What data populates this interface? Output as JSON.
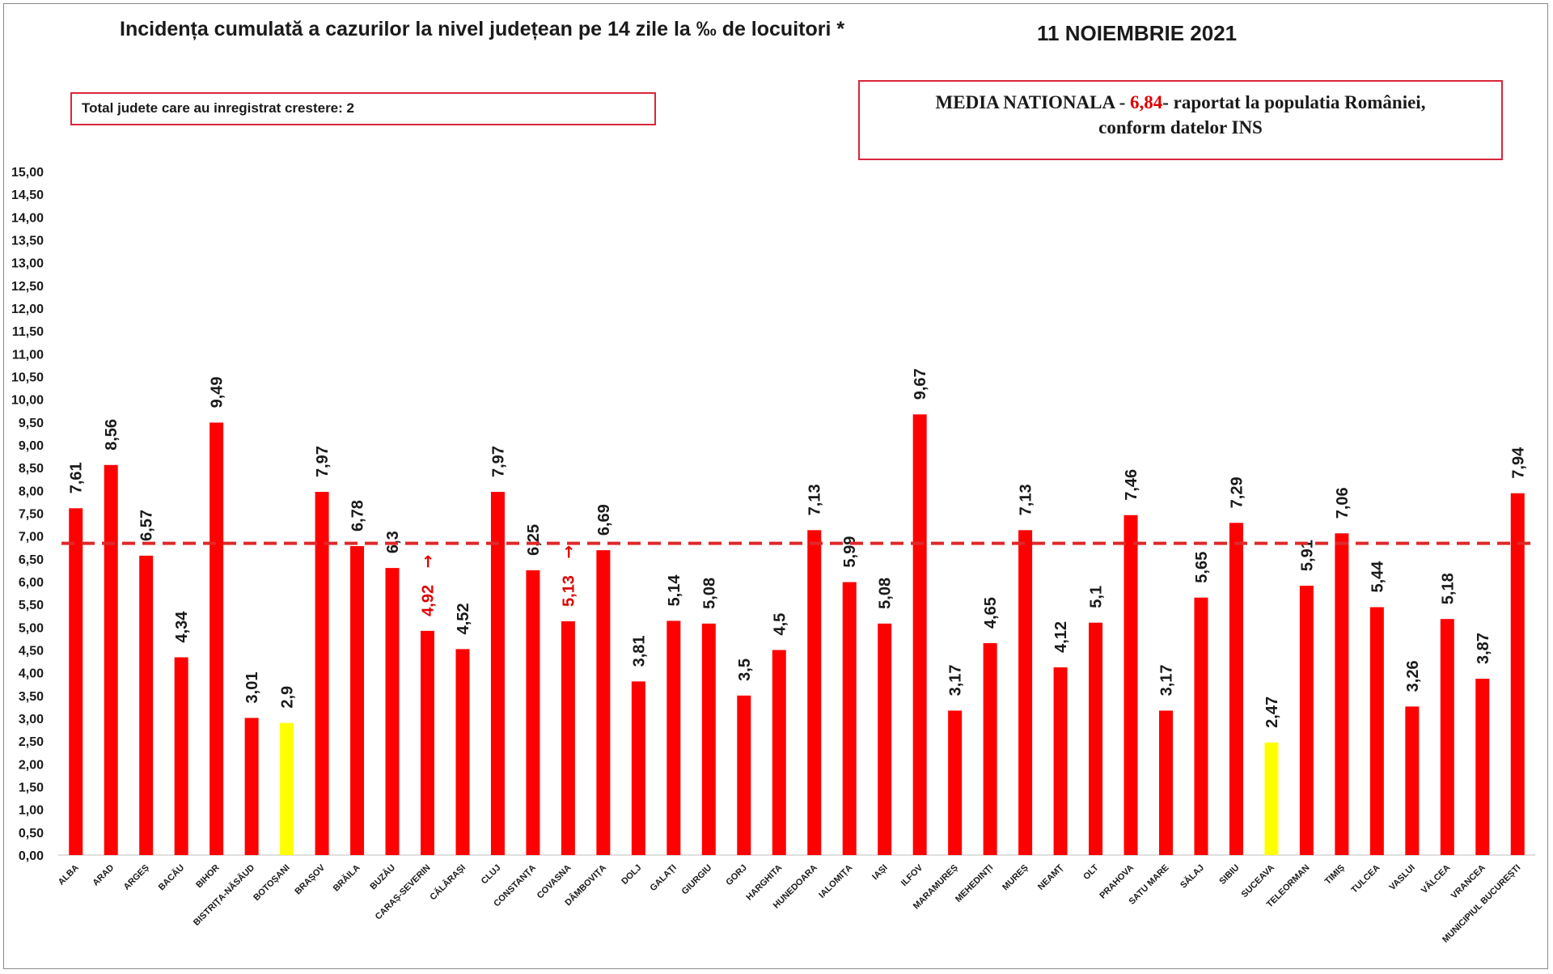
{
  "header": {
    "title": "Incidența cumulată a cazurilor la nivel județean pe 14 zile la ‰ de locuitori *",
    "date": "11 NOIEMBRIE 2021"
  },
  "info_box": {
    "text": "Total judete care au inregistrat crestere: 2"
  },
  "national_box": {
    "prefix": "MEDIA NATIONALA - ",
    "value_text": "6,84",
    "suffix": "-  raportat la populatia României,",
    "line2": "conform datelor INS"
  },
  "colors": {
    "bar": "#ff0000",
    "highlight": "#ffff00",
    "average_line": "#e0282a",
    "increase_label": "#e00000"
  },
  "chart_data": {
    "type": "bar",
    "ylim": [
      0,
      15
    ],
    "ytick_step": 0.5,
    "yticks": [
      "0,00",
      "0,50",
      "1,00",
      "1,50",
      "2,00",
      "2,50",
      "3,00",
      "3,50",
      "4,00",
      "4,50",
      "5,00",
      "5,50",
      "6,00",
      "6,50",
      "7,00",
      "7,50",
      "8,00",
      "8,50",
      "9,00",
      "9,50",
      "10,00",
      "10,50",
      "11,00",
      "11,50",
      "12,00",
      "12,50",
      "13,00",
      "13,50",
      "14,00",
      "14,50",
      "15,00"
    ],
    "average": 6.84,
    "grid": false,
    "categories": [
      "ALBA",
      "ARAD",
      "ARGEȘ",
      "BACĂU",
      "BIHOR",
      "BISTRIȚA-NĂSĂUD",
      "BOTOȘANI",
      "BRAȘOV",
      "BRĂILA",
      "BUZĂU",
      "CARAȘ-SEVERIN",
      "CĂLĂRAȘI",
      "CLUJ",
      "CONSTANȚA",
      "COVASNA",
      "DÂMBOVIȚA",
      "DOLJ",
      "GALAȚI",
      "GIURGIU",
      "GORJ",
      "HARGHITA",
      "HUNEDOARA",
      "IALOMIȚA",
      "IAȘI",
      "ILFOV",
      "MARAMUREȘ",
      "MEHEDINȚI",
      "MUREȘ",
      "NEAMȚ",
      "OLT",
      "PRAHOVA",
      "SATU MARE",
      "SĂLAJ",
      "SIBIU",
      "SUCEAVA",
      "TELEORMAN",
      "TIMIȘ",
      "TULCEA",
      "VASLUI",
      "VÂLCEA",
      "VRANCEA",
      "MUNICIPIUL BUCUREȘTI"
    ],
    "values": [
      7.61,
      8.56,
      6.57,
      4.34,
      9.49,
      3.01,
      2.9,
      7.97,
      6.78,
      6.3,
      4.92,
      4.52,
      7.97,
      6.25,
      5.13,
      6.69,
      3.81,
      5.14,
      5.08,
      3.5,
      4.5,
      7.13,
      5.99,
      5.08,
      9.67,
      3.17,
      4.65,
      7.13,
      4.12,
      5.1,
      7.46,
      3.17,
      5.65,
      7.29,
      2.47,
      5.91,
      7.06,
      5.44,
      3.26,
      5.18,
      3.87,
      7.94
    ],
    "labels": [
      "7,61",
      "8,56",
      "6,57",
      "4,34",
      "9,49",
      "3,01",
      "2,9",
      "7,97",
      "6,78",
      "6,3",
      "4,92",
      "4,52",
      "7,97",
      "6,25",
      "5,13",
      "6,69",
      "3,81",
      "5,14",
      "5,08",
      "3,5",
      "4,5",
      "7,13",
      "5,99",
      "5,08",
      "9,67",
      "3,17",
      "4,65",
      "7,13",
      "4,12",
      "5,1",
      "7,46",
      "3,17",
      "5,65",
      "7,29",
      "2,47",
      "5,91",
      "7,06",
      "5,44",
      "3,26",
      "5,18",
      "3,87",
      "7,94"
    ],
    "highlighted": [
      "BOTOȘANI",
      "SUCEAVA"
    ],
    "increased": [
      "CARAȘ-SEVERIN",
      "COVASNA"
    ],
    "increase_marker": "→"
  }
}
